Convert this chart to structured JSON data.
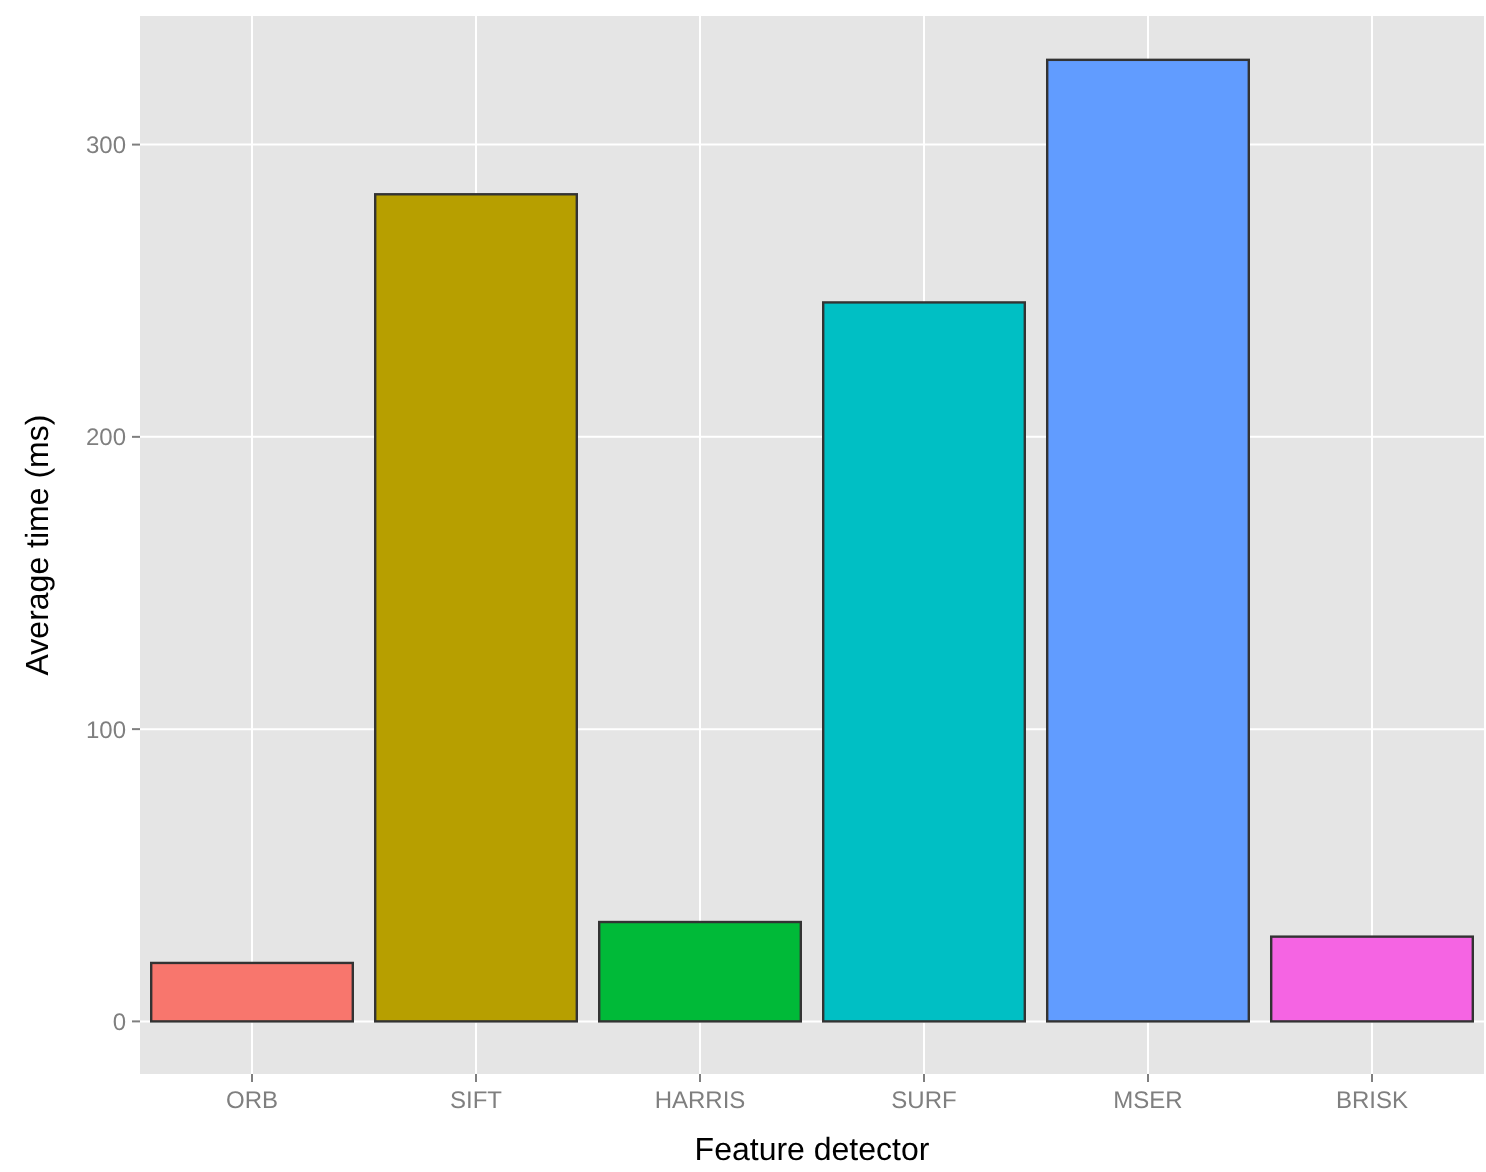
{
  "chart_data": {
    "type": "bar",
    "xlabel": "Feature detector",
    "ylabel": "Average time (ms)",
    "categories": [
      "ORB",
      "SIFT",
      "HARRIS",
      "SURF",
      "MSER",
      "BRISK"
    ],
    "values": [
      20,
      283,
      34,
      246,
      329,
      29
    ],
    "colors": [
      "#f8766d",
      "#b79f00",
      "#00ba38",
      "#00bfc4",
      "#619cff",
      "#f564e3"
    ],
    "ylim": [
      -18,
      344
    ],
    "yticks": [
      0,
      100,
      200,
      300
    ],
    "grid": true
  }
}
